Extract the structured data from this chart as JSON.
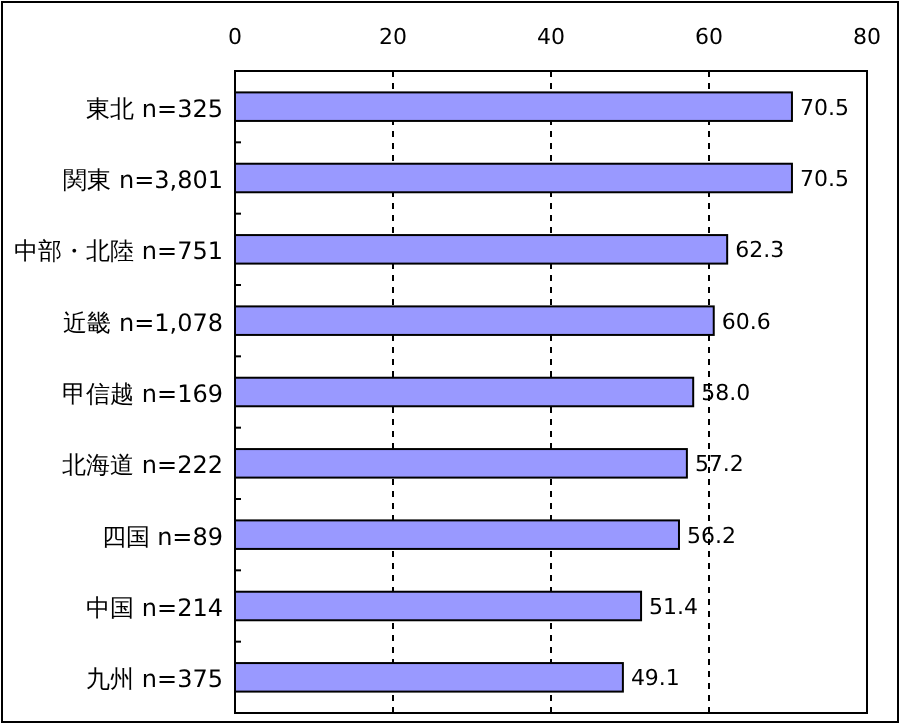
{
  "chart_data": {
    "type": "bar",
    "orientation": "horizontal",
    "categories": [
      "東北 n=325",
      "関東 n=3,801",
      "中部・北陸 n=751",
      "近畿 n=1,078",
      "甲信越 n=169",
      "北海道 n=222",
      "四国 n=89",
      "中国 n=214",
      "九州 n=375"
    ],
    "values": [
      70.5,
      70.5,
      62.3,
      60.6,
      58.0,
      57.2,
      56.2,
      51.4,
      49.1
    ],
    "value_labels": [
      "70.5",
      "70.5",
      "62.3",
      "60.6",
      "58.0",
      "57.2",
      "56.2",
      "51.4",
      "49.1"
    ],
    "color": "#9999ff",
    "xlim": [
      0,
      80
    ],
    "xticks": [
      0,
      20,
      40,
      60,
      80
    ],
    "grid": "x"
  }
}
